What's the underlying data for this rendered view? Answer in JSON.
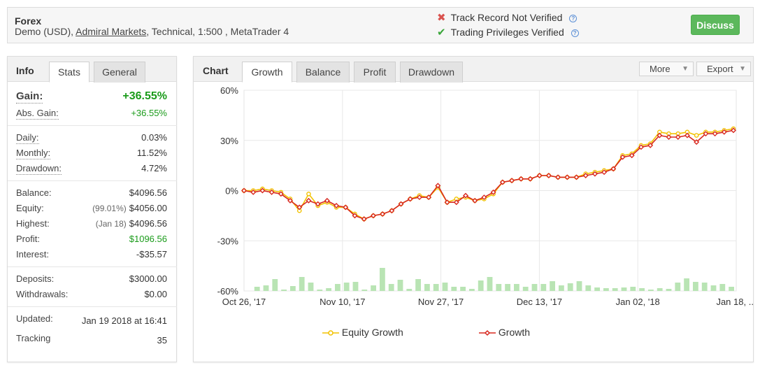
{
  "account": {
    "title": "Forex",
    "type": "Demo (USD),",
    "broker": "Admiral Markets",
    "details": ", Technical, 1:500 , MetaTrader 4",
    "track_record": "Track Record Not Verified",
    "trading_privileges": "Trading Privileges Verified",
    "discuss_label": "Discuss"
  },
  "info_panel": {
    "caption": "Info",
    "tabs": [
      "Stats",
      "General"
    ],
    "active_tab": "Stats"
  },
  "stats": {
    "gain": {
      "label": "Gain:",
      "value": "+36.55%"
    },
    "abs_gain": {
      "label": "Abs. Gain:",
      "value": "+36.55%"
    },
    "daily": {
      "label": "Daily:",
      "value": "0.03%"
    },
    "monthly": {
      "label": "Monthly:",
      "value": "11.52%"
    },
    "drawdown": {
      "label": "Drawdown:",
      "value": "4.72%"
    },
    "balance": {
      "label": "Balance:",
      "value": "$4096.56"
    },
    "equity": {
      "label": "Equity:",
      "prefix": "(99.01%)",
      "value": "$4056.00"
    },
    "highest": {
      "label": "Highest:",
      "prefix": "(Jan 18)",
      "value": "$4096.56"
    },
    "profit": {
      "label": "Profit:",
      "value": "$1096.56"
    },
    "interest": {
      "label": "Interest:",
      "value": "-$35.57"
    },
    "deposits": {
      "label": "Deposits:",
      "value": "$3000.00"
    },
    "withdrawals": {
      "label": "Withdrawals:",
      "value": "$0.00"
    },
    "updated": {
      "label": "Updated:",
      "value": "Jan 19 2018 at 16:41"
    },
    "tracking": {
      "label": "Tracking",
      "value": "35"
    }
  },
  "chart_panel": {
    "caption": "Chart",
    "tabs": [
      "Growth",
      "Balance",
      "Profit",
      "Drawdown"
    ],
    "active_tab": "Growth",
    "more_label": "More",
    "export_label": "Export"
  },
  "colors": {
    "growth": "#d8281f",
    "equity": "#f2c200",
    "bars": "#b9e4b4",
    "gain_green": "#1a9b1a",
    "discuss": "#5cb85c"
  },
  "chart_data": {
    "type": "line",
    "y_ticks": [
      "60%",
      "30%",
      "0%",
      "-30%",
      "-60%"
    ],
    "ylim": [
      -60,
      60
    ],
    "x_ticks": [
      "Oct 26, '17",
      "Nov 10, '17",
      "Nov 27, '17",
      "Dec 13, '17",
      "Jan 02, '18",
      "Jan 18, ..."
    ],
    "grid": true,
    "legend_position": "bottom",
    "series": [
      {
        "name": "Equity Growth",
        "values": [
          0,
          0,
          1,
          0,
          -1,
          -5,
          -12,
          -2,
          -9,
          -7,
          -10,
          -10,
          -14,
          -17,
          -15,
          -14,
          -12,
          -8,
          -5,
          -3,
          -4,
          2,
          -7,
          -5,
          -4,
          -6,
          -5,
          -2,
          5,
          6,
          7,
          7,
          9,
          9,
          8,
          8,
          8,
          10,
          11,
          12,
          13,
          21,
          22,
          27,
          28,
          35,
          34,
          34,
          35,
          33,
          35,
          35,
          36,
          37
        ]
      },
      {
        "name": "Growth",
        "values": [
          0,
          -1,
          0,
          -1,
          -2,
          -6,
          -10,
          -6,
          -8,
          -6,
          -9,
          -10,
          -15,
          -17,
          -15,
          -14,
          -12,
          -8,
          -5,
          -4,
          -4,
          3,
          -7,
          -7,
          -3,
          -6,
          -4,
          -1,
          5,
          6,
          7,
          7,
          9,
          9,
          8,
          8,
          8,
          9,
          10,
          11,
          13,
          20,
          21,
          26,
          27,
          33,
          32,
          32,
          33,
          29,
          34,
          34,
          35,
          36
        ]
      }
    ],
    "bars": [
      0,
      6,
      8,
      17,
      2,
      7,
      20,
      12,
      2,
      4,
      10,
      12,
      13,
      2,
      8,
      33,
      10,
      16,
      3,
      17,
      10,
      10,
      12,
      6,
      6,
      3,
      15,
      20,
      10,
      10,
      10,
      6,
      10,
      10,
      14,
      8,
      11,
      14,
      8,
      5,
      4,
      4,
      5,
      6,
      4,
      2,
      4,
      3,
      12,
      18,
      13,
      12,
      8,
      10,
      6
    ]
  },
  "legend": {
    "equity_label": "Equity Growth",
    "growth_label": "Growth"
  }
}
